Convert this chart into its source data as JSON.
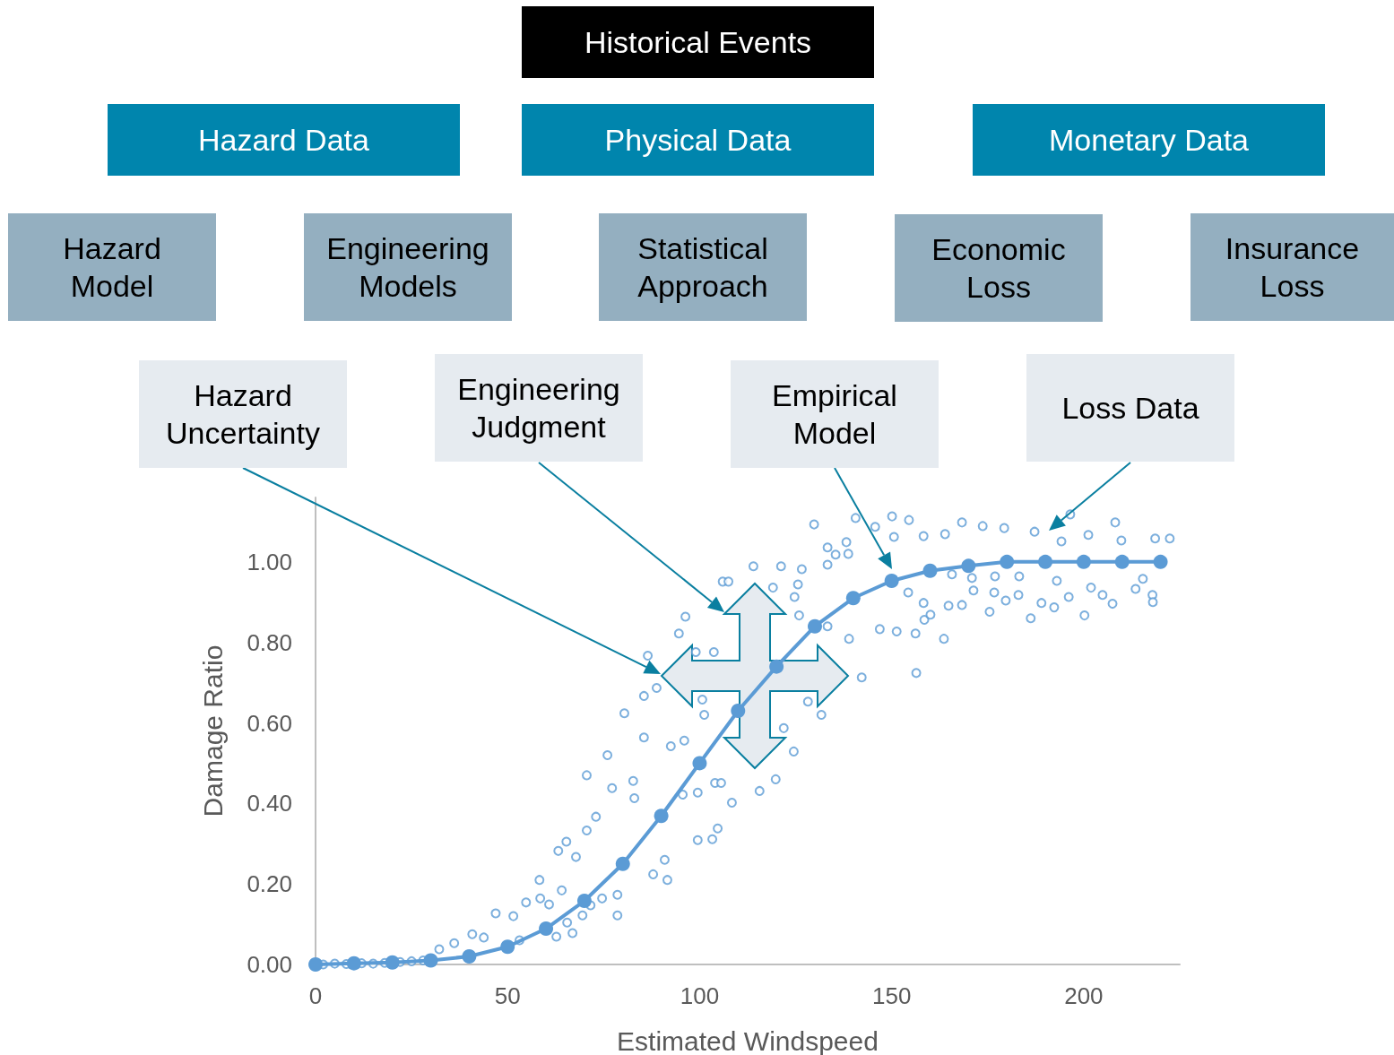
{
  "chart_data": {
    "type": "line",
    "xlabel": "Estimated Windspeed",
    "ylabel": "Damage Ratio",
    "xlim": [
      0,
      225
    ],
    "xticks": [
      0,
      50,
      100,
      150,
      200
    ],
    "ylim": [
      0,
      1.16
    ],
    "yticks": [
      {
        "value": 0,
        "label": "0.00"
      },
      {
        "value": 0.2,
        "label": "0.20"
      },
      {
        "value": 0.4,
        "label": "0.40"
      },
      {
        "value": 0.6,
        "label": "0.60"
      },
      {
        "value": 0.8,
        "label": "0.80"
      },
      {
        "value": 1,
        "label": "1.00"
      }
    ],
    "marker": "circle",
    "annotations": [
      "Historical Events",
      "Hazard Data",
      "Physical Data",
      "Monetary Data",
      "Hazard Model",
      "Engineering Models",
      "Statistical Approach",
      "Economic Loss",
      "Insurance Loss",
      "Hazard Uncertainty",
      "Engineering Judgment",
      "Empirical Model",
      "Loss Data"
    ],
    "series": [
      {
        "type": "scatter",
        "color": "#5b9bd5",
        "x": [
          2,
          5,
          8,
          12,
          15,
          18,
          22,
          25,
          28,
          32.2,
          36.1,
          40.8,
          43.8,
          46.9,
          51.5,
          53.1,
          54.8,
          58.3,
          58.5,
          60.8,
          62.7,
          63.2,
          64.1,
          65.3,
          65.5,
          66.9,
          67.8,
          69.5,
          70.6,
          70.6,
          71.6,
          73,
          74.6,
          76,
          77.2,
          78.6,
          78.6,
          80.4,
          82.7,
          83,
          85.5,
          85.5,
          86.5,
          87.9,
          88.8,
          90.9,
          91.6,
          92.5,
          94.6,
          95.6,
          96,
          96.3,
          99,
          99.5,
          99.5,
          100.7,
          101.2,
          103.3,
          103.7,
          104,
          104.7,
          105.6,
          106,
          107.5,
          108.4,
          114,
          115.6,
          119.1,
          119.8,
          121.2,
          121.9,
          124.5,
          124.7,
          125.6,
          125.9,
          126.6,
          128.2,
          129.8,
          131.7,
          133.3,
          133.3,
          133.3,
          135.4,
          138.2,
          138.7,
          138.9,
          140.6,
          142.2,
          145.7,
          146.9,
          150.1,
          150.6,
          151.3,
          154.3,
          154.5,
          156.2,
          156.4,
          158.3,
          158.3,
          158.5,
          160.1,
          163.6,
          163.9,
          164.8,
          165.7,
          168.3,
          168.3,
          170.9,
          171.3,
          173.7,
          175.5,
          176.7,
          176.9,
          179.3,
          179.7,
          183,
          183.2,
          186.2,
          187.2,
          189,
          192.3,
          193,
          194.2,
          196.1,
          196.5,
          200.2,
          201.2,
          201.9,
          204.9,
          207.5,
          208.2,
          209.8,
          213.5,
          215.4,
          217.9,
          218,
          218.6,
          222.4
        ],
        "values": [
          0,
          0.002,
          0.001,
          0.003,
          0.002,
          0.004,
          0.006,
          0.008,
          0.01,
          0.038,
          0.053,
          0.075,
          0.067,
          0.127,
          0.12,
          0.06,
          0.154,
          0.21,
          0.164,
          0.149,
          0.069,
          0.282,
          0.184,
          0.305,
          0.104,
          0.078,
          0.267,
          0.122,
          0.47,
          0.333,
          0.147,
          0.367,
          0.164,
          0.52,
          0.438,
          0.122,
          0.173,
          0.624,
          0.456,
          0.413,
          0.667,
          0.564,
          0.767,
          0.224,
          0.687,
          0.26,
          0.21,
          0.542,
          0.822,
          0.422,
          0.556,
          0.864,
          0.776,
          0.309,
          0.427,
          0.658,
          0.62,
          0.311,
          0.776,
          0.451,
          0.338,
          0.451,
          0.951,
          0.951,
          0.402,
          0.989,
          0.431,
          0.936,
          0.46,
          0.989,
          0.587,
          0.529,
          0.913,
          0.944,
          0.867,
          0.982,
          0.653,
          1.093,
          0.62,
          1.036,
          0.84,
          0.993,
          1.018,
          1.049,
          1.02,
          0.809,
          1.109,
          0.713,
          1.087,
          0.833,
          1.113,
          1.062,
          0.827,
          0.924,
          1.104,
          0.822,
          0.724,
          1.064,
          0.898,
          0.856,
          0.869,
          0.809,
          1.069,
          0.891,
          0.969,
          1.098,
          0.893,
          0.96,
          0.929,
          1.089,
          0.876,
          0.924,
          0.964,
          1.084,
          0.904,
          0.918,
          0.964,
          0.86,
          1.075,
          0.898,
          0.887,
          0.953,
          1.051,
          0.913,
          1.118,
          0.867,
          1.067,
          0.936,
          0.918,
          0.896,
          1.098,
          1.053,
          0.933,
          0.958,
          0.918,
          0.9,
          1.058,
          1.058
        ]
      },
      {
        "color": "#5b9bd5",
        "x": [
          0,
          10,
          20,
          30,
          40,
          50,
          60,
          70,
          80,
          90,
          100,
          110,
          120,
          130,
          140,
          150,
          160,
          170,
          180,
          190,
          200,
          210,
          220
        ],
        "values": [
          0,
          0.003,
          0.005,
          0.01,
          0.02,
          0.044,
          0.089,
          0.158,
          0.25,
          0.369,
          0.5,
          0.63,
          0.74,
          0.84,
          0.91,
          0.953,
          0.978,
          0.99,
          1,
          1,
          1,
          1,
          1
        ]
      }
    ]
  }
}
